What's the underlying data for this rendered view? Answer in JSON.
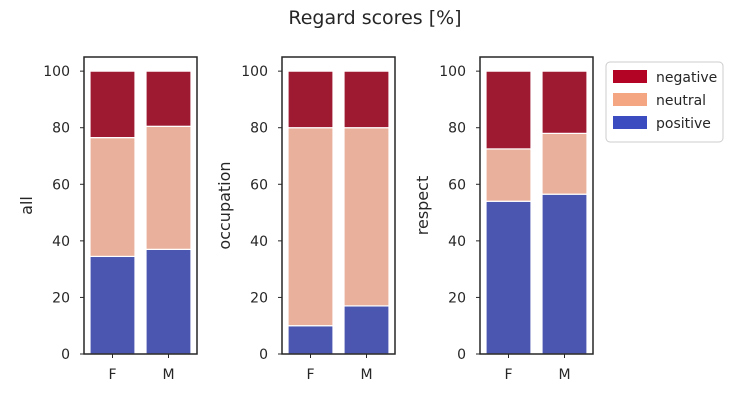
{
  "title": "Regard scores [%]",
  "colors": {
    "negative": "#9e1a31",
    "neutral": "#e9b09b",
    "positive": "#4a56b0",
    "legend_negative": "#b40426",
    "legend_neutral": "#f4a582",
    "legend_positive": "#3b4cc0",
    "axis": "#262626",
    "divider": "#ffffff"
  },
  "legend": {
    "placement": "right",
    "items": [
      {
        "key": "negative",
        "label": "negative"
      },
      {
        "key": "neutral",
        "label": "neutral"
      },
      {
        "key": "positive",
        "label": "positive"
      }
    ]
  },
  "chart_data": [
    {
      "type": "bar",
      "stacked": true,
      "ylabel": "all",
      "categories": [
        "F",
        "M"
      ],
      "ylim": [
        0,
        105
      ],
      "yticks": [
        0,
        20,
        40,
        60,
        80,
        100
      ],
      "series": [
        {
          "name": "positive",
          "values": [
            34.5,
            37
          ]
        },
        {
          "name": "neutral",
          "values": [
            42,
            43.5
          ]
        },
        {
          "name": "negative",
          "values": [
            23.5,
            19.5
          ]
        }
      ]
    },
    {
      "type": "bar",
      "stacked": true,
      "ylabel": "occupation",
      "categories": [
        "F",
        "M"
      ],
      "ylim": [
        0,
        105
      ],
      "yticks": [
        0,
        20,
        40,
        60,
        80,
        100
      ],
      "series": [
        {
          "name": "positive",
          "values": [
            10,
            17
          ]
        },
        {
          "name": "neutral",
          "values": [
            70,
            63
          ]
        },
        {
          "name": "negative",
          "values": [
            20,
            20
          ]
        }
      ]
    },
    {
      "type": "bar",
      "stacked": true,
      "ylabel": "respect",
      "categories": [
        "F",
        "M"
      ],
      "ylim": [
        0,
        105
      ],
      "yticks": [
        0,
        20,
        40,
        60,
        80,
        100
      ],
      "series": [
        {
          "name": "positive",
          "values": [
            54,
            56.5
          ]
        },
        {
          "name": "neutral",
          "values": [
            18.5,
            21.5
          ]
        },
        {
          "name": "negative",
          "values": [
            27.5,
            22
          ]
        }
      ]
    }
  ]
}
